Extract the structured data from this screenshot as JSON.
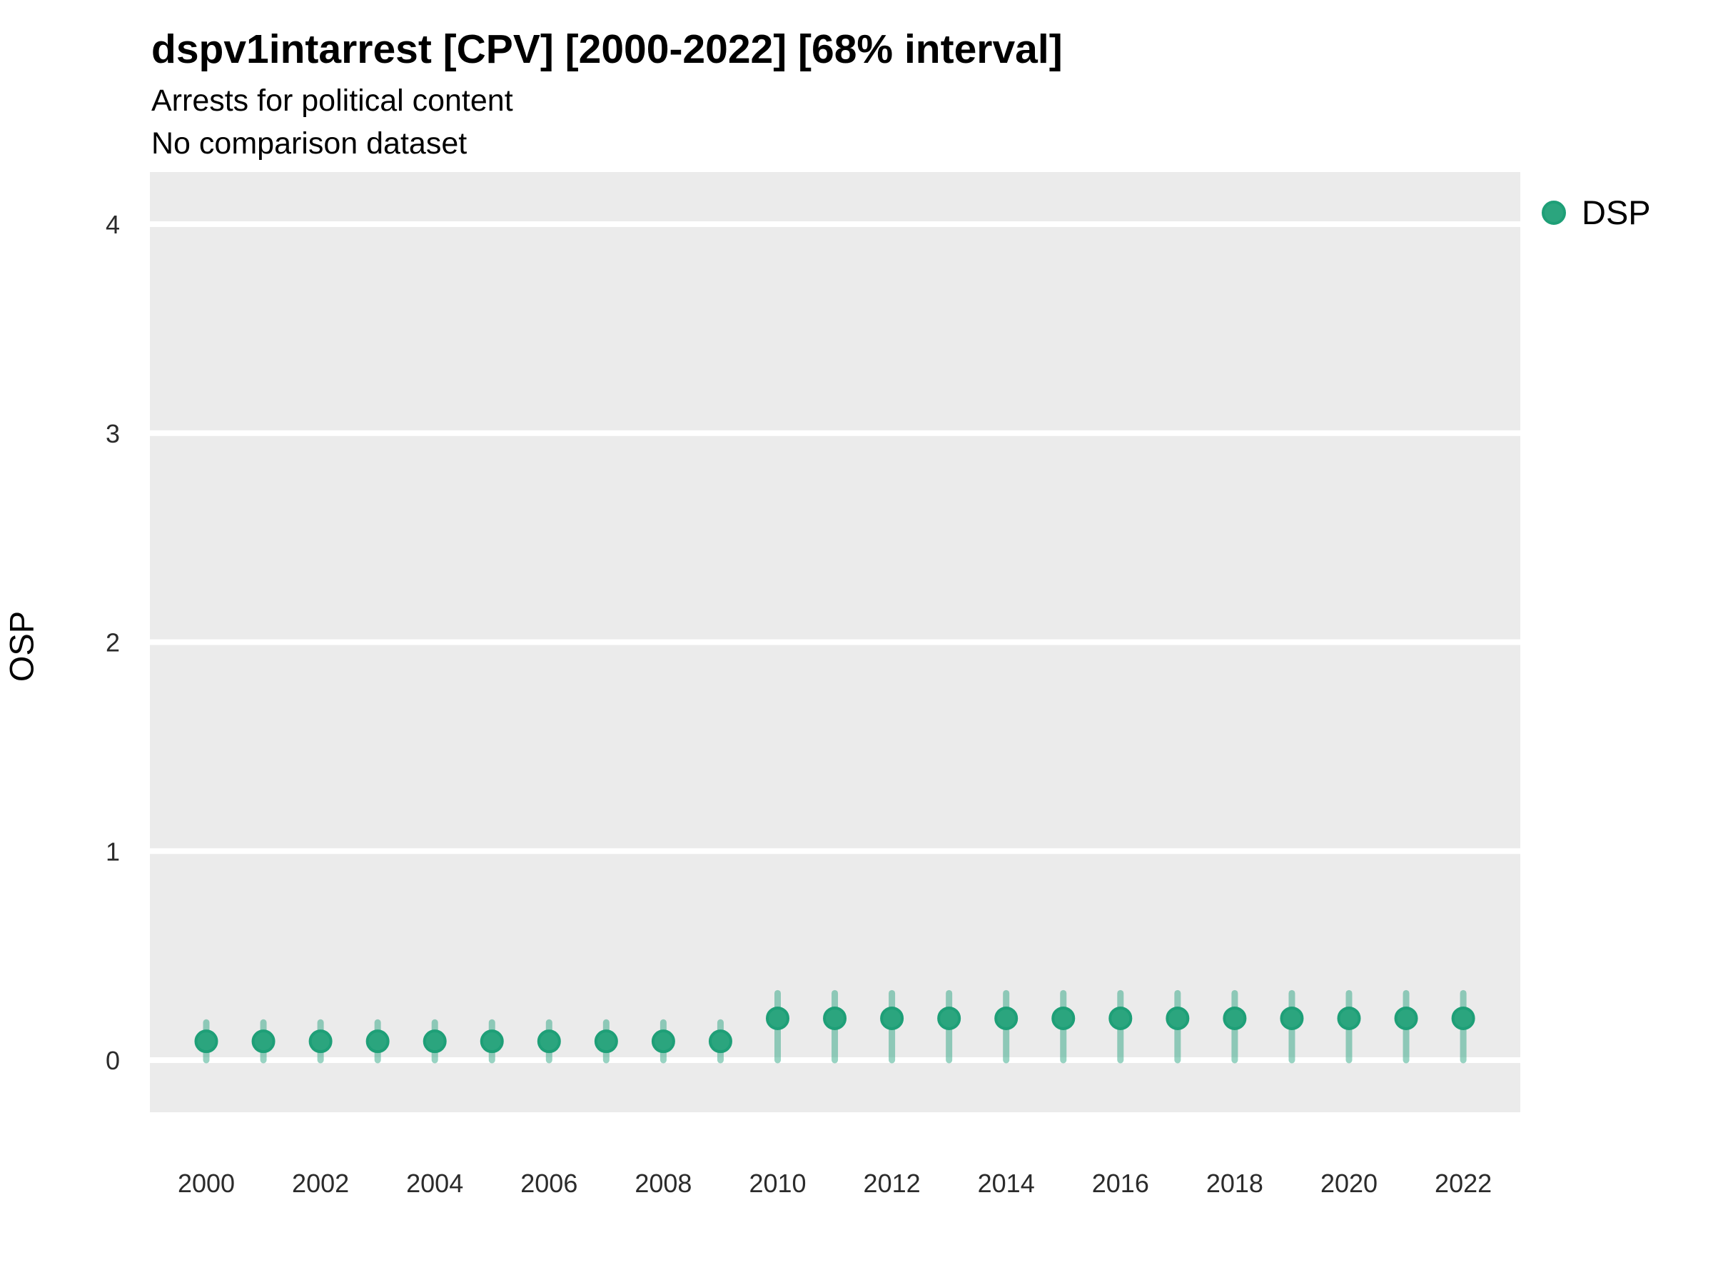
{
  "chart_data": {
    "type": "scatter",
    "subtype": "pointrange",
    "title": "dspv1intarrest [CPV] [2000-2022] [68% interval]",
    "subtitle": "Arrests for political content",
    "subtitle2": "No comparison dataset",
    "xlabel": "",
    "ylabel": "OSP",
    "x": [
      2000,
      2001,
      2002,
      2003,
      2004,
      2005,
      2006,
      2007,
      2008,
      2009,
      2010,
      2011,
      2012,
      2013,
      2014,
      2015,
      2016,
      2017,
      2018,
      2019,
      2020,
      2021,
      2022
    ],
    "series": [
      {
        "name": "DSP",
        "est": [
          0.09,
          0.09,
          0.09,
          0.09,
          0.09,
          0.09,
          0.09,
          0.09,
          0.09,
          0.09,
          0.2,
          0.2,
          0.2,
          0.2,
          0.2,
          0.2,
          0.2,
          0.2,
          0.2,
          0.2,
          0.2,
          0.2,
          0.2
        ],
        "lower": [
          0,
          0,
          0,
          0,
          0,
          0,
          0,
          0,
          0,
          0,
          0,
          0,
          0,
          0,
          0,
          0,
          0,
          0,
          0,
          0,
          0,
          0,
          0
        ],
        "upper": [
          0.18,
          0.18,
          0.18,
          0.18,
          0.18,
          0.18,
          0.18,
          0.18,
          0.18,
          0.18,
          0.32,
          0.32,
          0.32,
          0.32,
          0.32,
          0.32,
          0.32,
          0.32,
          0.32,
          0.32,
          0.32,
          0.32,
          0.32
        ]
      }
    ],
    "xticks": [
      2000,
      2002,
      2004,
      2006,
      2008,
      2010,
      2012,
      2014,
      2016,
      2018,
      2020,
      2022
    ],
    "yticks": [
      0,
      1,
      2,
      3,
      4
    ],
    "ylim": [
      -0.25,
      4.25
    ],
    "grid": "major horizontal, white on gray panel",
    "legend": {
      "position": "top-right",
      "entries": [
        {
          "label": "DSP",
          "color": "#2BA57E"
        }
      ]
    },
    "colors": {
      "panel_bg": "#EBEBEB",
      "grid_line": "#FFFFFF",
      "point_fill": "#2BA57E",
      "point_stroke": "#1E9F77",
      "interval_line": "#1B9E77",
      "interval_opacity": 0.45,
      "tick_label": "#2B2B2B",
      "text": "#000000"
    }
  }
}
